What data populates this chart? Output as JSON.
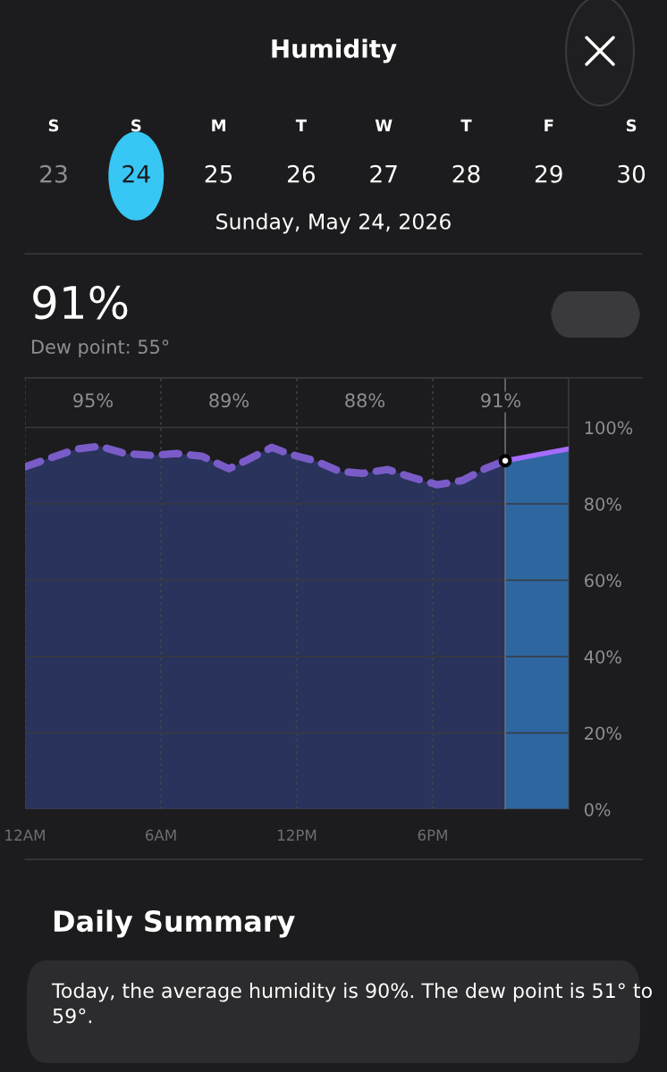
{
  "chart_data": {
    "type": "area",
    "title": "Humidity",
    "subtitle": "Sunday, May 24, 2026",
    "annotations": [
      "S",
      "S",
      "M",
      "T",
      "W",
      "T",
      "F",
      "S",
      "23",
      "24",
      "25",
      "26",
      "27",
      "28",
      "29",
      "30",
      "91%",
      "Dew point: 55°",
      "95%",
      "89%",
      "88%",
      "91%",
      "Daily Summary",
      "Today, the average humidity is 90%. The dew point is 51° to 59°."
    ],
    "xlim": [
      "2026-05-24T00:00",
      "2026-05-25T00:00"
    ],
    "xticks": [
      {
        "value": "2026-05-24T00:00",
        "label": "12AM"
      },
      {
        "value": "2026-05-24T06:00",
        "label": "6AM"
      },
      {
        "value": "2026-05-24T12:00",
        "label": "12PM"
      },
      {
        "value": "2026-05-24T18:00",
        "label": "6PM"
      }
    ],
    "ylim": [
      0,
      113
    ],
    "yticks": [
      {
        "value": 0,
        "label": "0%"
      },
      {
        "value": 20,
        "label": "20%"
      },
      {
        "value": 40,
        "label": "40%"
      },
      {
        "value": 60,
        "label": "60%"
      },
      {
        "value": 80,
        "label": "80%"
      },
      {
        "value": 100,
        "label": "100%"
      }
    ],
    "grid": true,
    "ref_lines": [
      {
        "axis": "x",
        "value": "2026-05-24T21:12",
        "color": "#6e6e73",
        "line_style": "solid"
      }
    ],
    "series": [
      {
        "color": "#7a5cc8",
        "line_style": "dashed",
        "x": [
          "2026-05-24T00:00",
          "2026-05-24T01:06",
          "2026-05-24T02:18",
          "2026-05-24T03:18",
          "2026-05-24T04:24",
          "2026-05-24T05:36",
          "2026-05-24T06:42",
          "2026-05-24T07:48",
          "2026-05-24T09:00",
          "2026-05-24T09:48",
          "2026-05-24T10:54",
          "2026-05-24T11:42",
          "2026-05-24T12:48",
          "2026-05-24T13:54",
          "2026-05-24T14:54",
          "2026-05-24T16:00",
          "2026-05-24T17:06",
          "2026-05-24T18:12",
          "2026-05-24T19:18",
          "2026-05-24T20:18",
          "2026-05-24T21:12"
        ],
        "values": [
          89.7,
          92.0,
          94.4,
          95.1,
          93.2,
          92.7,
          93.2,
          92.5,
          89.2,
          91.5,
          94.8,
          93.0,
          91.3,
          88.5,
          88.0,
          89.0,
          86.9,
          85.0,
          86.1,
          89.2,
          91.3
        ]
      },
      {
        "color": "#a66cff",
        "line_style": "solid",
        "x": [
          "2026-05-24T21:12",
          "2026-05-25T00:00"
        ],
        "values": [
          91.3,
          94.4
        ]
      },
      {
        "type": "scatter",
        "color": "#ffffff",
        "marker": "circle",
        "x": [
          "2026-05-24T21:12"
        ],
        "values": [
          91.3
        ]
      }
    ]
  }
}
